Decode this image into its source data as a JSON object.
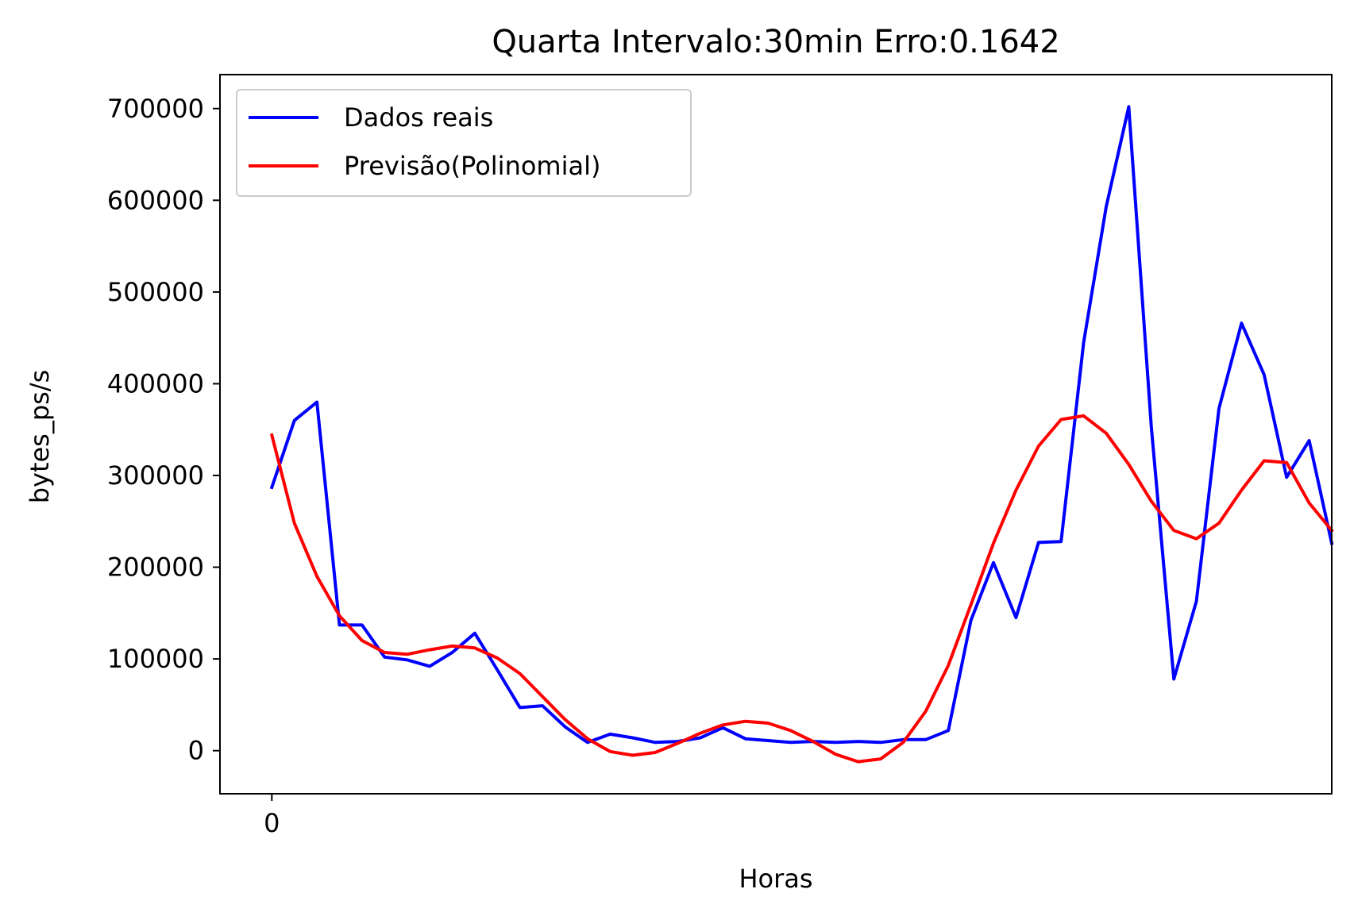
{
  "chart_data": {
    "type": "line",
    "title": "Quarta Intervalo:30min Erro:0.1642",
    "xlabel": "Horas",
    "ylabel": "bytes_ps/s",
    "xlim": [
      -2.3,
      47
    ],
    "ylim": [
      -47000,
      737000
    ],
    "x_ticks": [
      0
    ],
    "x_tick_labels": [
      "0"
    ],
    "y_ticks": [
      0,
      100000,
      200000,
      300000,
      400000,
      500000,
      600000,
      700000
    ],
    "y_tick_labels": [
      "0",
      "100000",
      "200000",
      "300000",
      "400000",
      "500000",
      "600000",
      "700000"
    ],
    "grid": false,
    "legend_position": "top-left",
    "x": [
      0,
      1,
      2,
      3,
      4,
      5,
      6,
      7,
      8,
      9,
      10,
      11,
      12,
      13,
      14,
      15,
      16,
      17,
      18,
      19,
      20,
      21,
      22,
      23,
      24,
      25,
      26,
      27,
      28,
      29,
      30,
      31,
      32,
      33,
      34,
      35,
      36,
      37,
      38,
      39,
      40,
      41,
      42,
      43,
      44,
      45,
      46,
      47
    ],
    "series": [
      {
        "name": "Dados reais",
        "color": "#0000ff",
        "values": [
          287000,
          360000,
          380000,
          137000,
          137000,
          102000,
          99000,
          92000,
          107000,
          128000,
          88000,
          47000,
          49000,
          26000,
          9000,
          18000,
          14000,
          9000,
          10000,
          14000,
          25000,
          13000,
          11000,
          9000,
          10000,
          9000,
          10000,
          9000,
          12000,
          12000,
          22000,
          142000,
          205000,
          145000,
          227000,
          228000,
          445000,
          593000,
          702000,
          353000,
          78000,
          163000,
          373000,
          466000,
          410000,
          298000,
          338000,
          226000
        ]
      },
      {
        "name": "Previsão(Polinomial)",
        "color": "#ff0000",
        "values": [
          344000,
          248000,
          190000,
          147000,
          120000,
          107000,
          105000,
          110000,
          114000,
          112000,
          101000,
          84000,
          59000,
          34000,
          13000,
          -1000,
          -5000,
          -2000,
          8000,
          19000,
          28000,
          32000,
          30000,
          22000,
          10000,
          -4000,
          -12000,
          -9000,
          9000,
          43000,
          93000,
          159000,
          226000,
          284000,
          332000,
          361000,
          365000,
          346000,
          312000,
          272000,
          240000,
          231000,
          248000,
          284000,
          316000,
          314000,
          270000,
          240000
        ]
      }
    ]
  }
}
